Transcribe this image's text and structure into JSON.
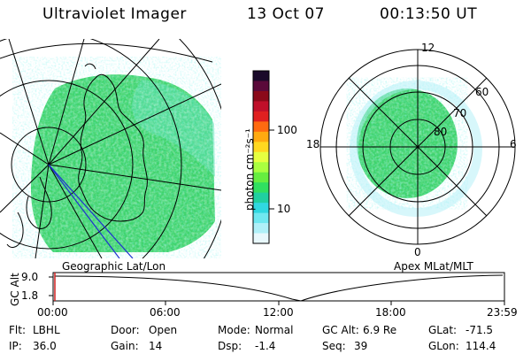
{
  "header": {
    "instrument": "Ultraviolet Imager",
    "date": "13 Oct 07",
    "time": "00:13:50 UT"
  },
  "colorbar": {
    "unit_label": "photon cm⁻²s⁻¹",
    "ticks": [
      "100",
      "10"
    ],
    "colors_top_to_bottom": [
      "#1a0a2a",
      "#5a0a3a",
      "#8b0a1a",
      "#c0102a",
      "#e02020",
      "#ff6a10",
      "#ffaa10",
      "#ffd820",
      "#e6ff40",
      "#aaff40",
      "#66ee40",
      "#30e060",
      "#20d0a0",
      "#30d8e0",
      "#70e8f0",
      "#b0f0f8",
      "#e8f8fc"
    ]
  },
  "left_map": {
    "caption": "Geographic Lat/Lon"
  },
  "right_map": {
    "caption": "Apex MLat/MLT",
    "mlt_labels": {
      "top": "12",
      "left": "18",
      "right": "6",
      "bottom": "0"
    },
    "lat_labels": [
      "60",
      "70",
      "80"
    ]
  },
  "altitude_plot": {
    "ylabel": "GC Alt",
    "yticks": [
      "9.0",
      "1.8"
    ],
    "xticks": [
      "00:00",
      "06:00",
      "12:00",
      "18:00",
      "23:59"
    ]
  },
  "status": {
    "row1": {
      "flt_label": "Flt:",
      "flt_value": "LBHL",
      "door_label": "Door:",
      "door_value": "Open",
      "mode_label": "Mode:",
      "mode_value": "Normal",
      "gcalt_label": "GC Alt:",
      "gcalt_value": "6.9 Re",
      "glat_label": "GLat:",
      "glat_value": "-71.5"
    },
    "row2": {
      "ip_label": "IP:",
      "ip_value": "36.0",
      "gain_label": "Gain:",
      "gain_value": "14",
      "dsp_label": "Dsp:",
      "dsp_value": "-1.4",
      "seq_label": "Seq:",
      "seq_value": "39",
      "glon_label": "GLon:",
      "glon_value": "114.4"
    }
  }
}
